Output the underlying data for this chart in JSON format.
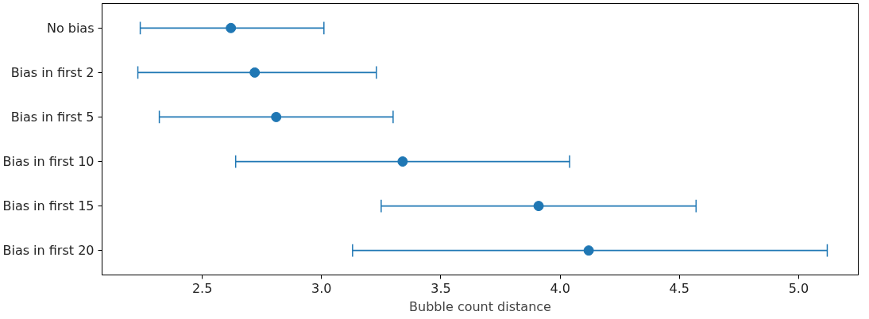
{
  "chart_data": {
    "type": "scatter",
    "orientation": "horizontal",
    "xlabel": "Bubble count distance",
    "categories": [
      "No bias",
      "Bias in first 2",
      "Bias in first 5",
      "Bias in first 10",
      "Bias in first 15",
      "Bias in first 20"
    ],
    "series": [
      {
        "color": "#1f77b4",
        "values": [
          2.62,
          2.72,
          2.81,
          3.34,
          3.91,
          4.12
        ],
        "errors": [
          [
            2.24,
            3.01
          ],
          [
            2.23,
            3.23
          ],
          [
            2.32,
            3.3
          ],
          [
            2.64,
            4.04
          ],
          [
            3.25,
            4.57
          ],
          [
            3.13,
            5.12
          ]
        ]
      }
    ],
    "xlim": [
      2.08,
      5.25
    ],
    "xticks": [
      {
        "value": 2.5,
        "label": "2.5"
      },
      {
        "value": 3.0,
        "label": "3.0"
      },
      {
        "value": 3.5,
        "label": "3.5"
      },
      {
        "value": 4.0,
        "label": "4.0"
      },
      {
        "value": 4.5,
        "label": "4.5"
      },
      {
        "value": 5.0,
        "label": "5.0"
      }
    ],
    "marker": "circle",
    "grid": false
  }
}
